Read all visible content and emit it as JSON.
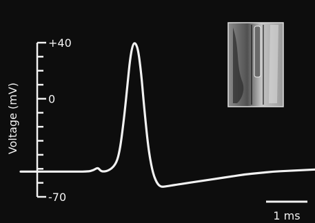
{
  "chart_data": {
    "type": "line",
    "title": "",
    "xlabel": "",
    "ylabel": "Voltage (mV)",
    "ylim": [
      -70,
      40
    ],
    "xlim": [
      0,
      10.5
    ],
    "y_tick_labels": [
      {
        "value": 40,
        "label": "+40"
      },
      {
        "value": 0,
        "label": "0"
      },
      {
        "value": -70,
        "label": "-70"
      }
    ],
    "y_minor_tick_step": 10,
    "scale_bar": {
      "length": 1,
      "label": "1 ms"
    },
    "inset": "micrograph-inset",
    "series": [
      {
        "x": [
          0,
          0.5,
          1.0,
          1.5,
          2.0,
          2.4,
          2.6,
          2.75,
          2.85,
          2.95,
          3.1,
          3.3,
          3.45,
          3.55,
          3.65,
          3.75,
          3.82,
          3.9,
          4.0,
          4.1,
          4.2,
          4.3,
          4.4,
          4.55,
          4.7,
          4.85,
          5.0,
          5.2,
          5.5,
          6.0,
          6.5,
          7.0,
          7.5,
          8.0,
          8.5,
          9.0,
          9.5,
          10.0,
          10.5
        ],
        "y": [
          -52,
          -52,
          -52,
          -52,
          -52,
          -52,
          -51,
          -49,
          -51.5,
          -52,
          -51.5,
          -49,
          -44,
          -35,
          -20,
          -2,
          12,
          28,
          39,
          40,
          34,
          18,
          -5,
          -35,
          -52,
          -60,
          -63,
          -62.5,
          -61.5,
          -60,
          -58.5,
          -57,
          -55.5,
          -54,
          -53,
          -52,
          -51.5,
          -51,
          -50.5
        ]
      }
    ],
    "colors": {
      "trace": "#f2f2f2",
      "background": "#0d0d0d",
      "axis": "#f2f2f2"
    }
  }
}
